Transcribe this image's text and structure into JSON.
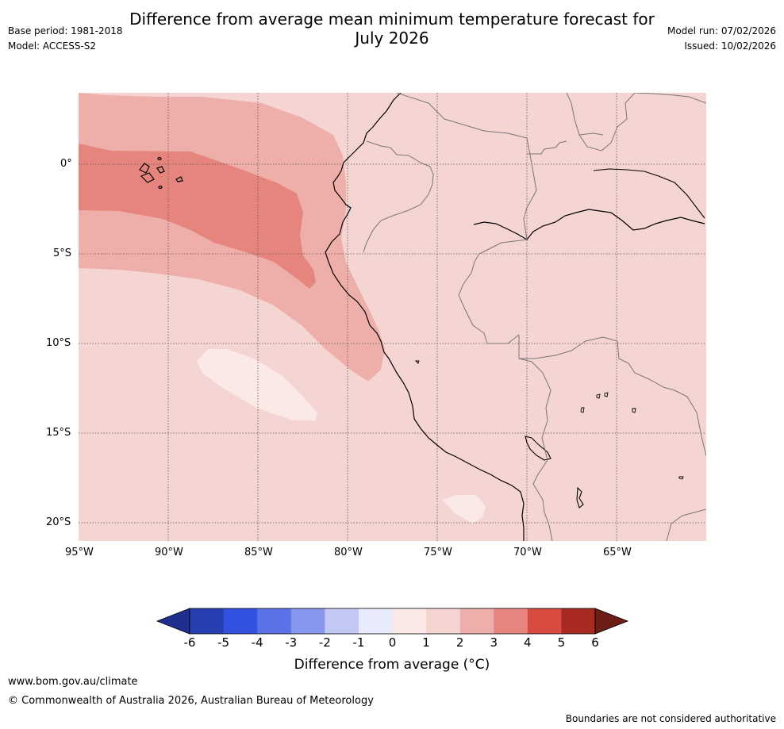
{
  "header": {
    "title_line1": "Difference from average mean minimum temperature forecast for",
    "title_line2": "July 2026",
    "base_period": "Base period: 1981-2018",
    "model": "Model: ACCESS-S2",
    "model_run": "Model run: 07/02/2026",
    "issued": "Issued: 10/02/2026"
  },
  "map": {
    "lon_range": [
      -95,
      -60
    ],
    "lat_range": [
      -21,
      4
    ],
    "lat_labels": [
      "0°",
      "5°S",
      "10°S",
      "15°S",
      "20°S"
    ],
    "lon_labels": [
      "95°W",
      "90°W",
      "85°W",
      "80°W",
      "75°W",
      "70°W",
      "65°W"
    ],
    "anomaly_zones": [
      {
        "name": "2-3 band",
        "range": "2 to 3"
      },
      {
        "name": "3-4 core",
        "range": "3 to 4"
      },
      {
        "name": "0-1 patch west",
        "range": "0 to 1"
      },
      {
        "name": "0-1 patch south",
        "range": "0 to 1"
      }
    ]
  },
  "colorbar": {
    "ticks": [
      "-6",
      "-5",
      "-4",
      "-3",
      "-2",
      "-1",
      "0",
      "1",
      "2",
      "3",
      "4",
      "5",
      "6"
    ],
    "colors": [
      "#1f2f8f",
      "#263fb0",
      "#3352e0",
      "#5a72e6",
      "#8596ec",
      "#c2c8f4",
      "#e8ebfb",
      "#fbe9e8",
      "#f5d5d2",
      "#eeafab",
      "#e6857d",
      "#d94a40",
      "#a82a22",
      "#6e1d16"
    ],
    "label": "Difference from average (°C)"
  },
  "footer": {
    "website": "www.bom.gov.au/climate",
    "copyright": "© Commonwealth of Australia 2026, Australian Bureau of Meteorology",
    "disclaimer": "Boundaries are not considered authoritative"
  }
}
